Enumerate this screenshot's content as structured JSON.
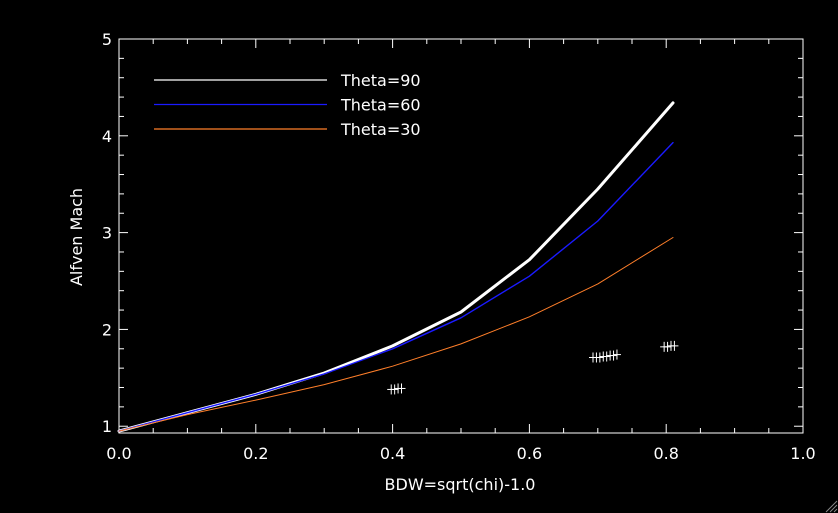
{
  "chart_data": {
    "type": "line",
    "title": "",
    "xlabel": "BDW=sqrt(chi)-1.0",
    "ylabel": "Alfven Mach",
    "xlim": [
      0.0,
      1.0
    ],
    "ylim": [
      0.93,
      5.0
    ],
    "x_tick_labels": [
      "0.0",
      "0.2",
      "0.4",
      "0.6",
      "0.8",
      "1.0"
    ],
    "y_tick_labels": [
      "1",
      "2",
      "3",
      "4",
      "5"
    ],
    "x_ticks": [
      0.0,
      0.2,
      0.4,
      0.6,
      0.8,
      1.0
    ],
    "y_ticks": [
      1,
      2,
      3,
      4,
      5
    ],
    "legend_position": "top-left",
    "grid": false,
    "series": [
      {
        "name": "Theta=90",
        "color": "#ffffff",
        "x": [
          0.0,
          0.1,
          0.2,
          0.3,
          0.4,
          0.5,
          0.6,
          0.7,
          0.81
        ],
        "y": [
          0.95,
          1.14,
          1.33,
          1.55,
          1.83,
          2.18,
          2.72,
          3.45,
          4.34
        ]
      },
      {
        "name": "Theta=60",
        "color": "#1a1aff",
        "x": [
          0.0,
          0.1,
          0.2,
          0.3,
          0.4,
          0.5,
          0.6,
          0.7,
          0.81
        ],
        "y": [
          0.95,
          1.14,
          1.33,
          1.54,
          1.8,
          2.12,
          2.55,
          3.12,
          3.93
        ]
      },
      {
        "name": "Theta=30",
        "color": "#ff7f2a",
        "x": [
          0.0,
          0.1,
          0.2,
          0.3,
          0.4,
          0.5,
          0.6,
          0.7,
          0.81
        ],
        "y": [
          0.95,
          1.12,
          1.27,
          1.43,
          1.62,
          1.85,
          2.13,
          2.47,
          2.95
        ]
      }
    ],
    "markers": {
      "symbol": "+",
      "color": "#ffffff",
      "x": [
        0.398,
        0.403,
        0.408,
        0.413,
        0.693,
        0.698,
        0.703,
        0.708,
        0.713,
        0.718,
        0.723,
        0.728,
        0.797,
        0.802,
        0.807,
        0.812
      ],
      "y": [
        1.38,
        1.38,
        1.39,
        1.39,
        1.71,
        1.71,
        1.71,
        1.72,
        1.72,
        1.73,
        1.73,
        1.74,
        1.82,
        1.82,
        1.83,
        1.83
      ]
    }
  }
}
